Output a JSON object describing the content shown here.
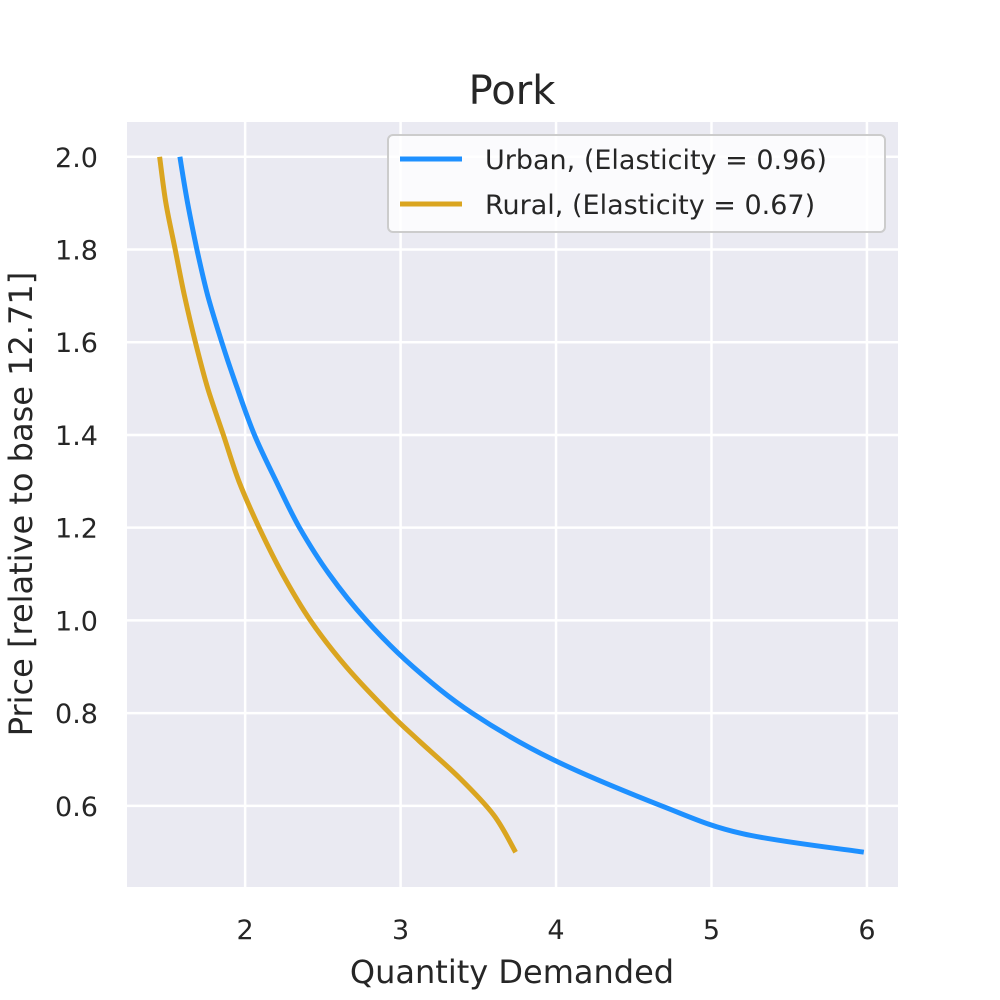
{
  "chart_data": {
    "type": "line",
    "title": "Pork",
    "xlabel": "Quantity Demanded",
    "ylabel": "Price [relative to base 12.71]",
    "xlim": [
      1.24,
      6.2
    ],
    "ylim": [
      0.425,
      2.075
    ],
    "xticks": [
      2,
      3,
      4,
      5,
      6
    ],
    "yticks": [
      0.6,
      0.8,
      1.0,
      1.2,
      1.4,
      1.6,
      1.8,
      2.0
    ],
    "xtick_labels": [
      "2",
      "3",
      "4",
      "5",
      "6"
    ],
    "ytick_labels": [
      "0.6",
      "0.8",
      "1.0",
      "1.2",
      "1.4",
      "1.6",
      "1.8",
      "2.0"
    ],
    "grid": true,
    "legend_position": "top-right",
    "background_color": "#EAEAF2",
    "series": [
      {
        "name": "Urban, (Elasticity = 0.96)",
        "color": "#1E90FF",
        "points": [
          [
            1.58,
            2.0
          ],
          [
            1.63,
            1.9
          ],
          [
            1.69,
            1.8
          ],
          [
            1.76,
            1.7
          ],
          [
            1.85,
            1.6
          ],
          [
            1.95,
            1.5
          ],
          [
            2.06,
            1.4
          ],
          [
            2.2,
            1.3
          ],
          [
            2.35,
            1.2
          ],
          [
            2.54,
            1.1
          ],
          [
            2.78,
            1.0
          ],
          [
            3.08,
            0.9
          ],
          [
            3.46,
            0.8
          ],
          [
            3.98,
            0.7
          ],
          [
            4.68,
            0.6
          ],
          [
            5.2,
            0.54
          ],
          [
            5.98,
            0.5
          ]
        ]
      },
      {
        "name": "Rural, (Elasticity = 0.67)",
        "color": "#DAA520",
        "points": [
          [
            1.45,
            2.0
          ],
          [
            1.49,
            1.9
          ],
          [
            1.55,
            1.8
          ],
          [
            1.61,
            1.7
          ],
          [
            1.68,
            1.6
          ],
          [
            1.76,
            1.5
          ],
          [
            1.86,
            1.4
          ],
          [
            1.96,
            1.3
          ],
          [
            2.09,
            1.2
          ],
          [
            2.24,
            1.1
          ],
          [
            2.42,
            1.0
          ],
          [
            2.65,
            0.9
          ],
          [
            2.93,
            0.8
          ],
          [
            3.12,
            0.74
          ],
          [
            3.38,
            0.66
          ],
          [
            3.6,
            0.58
          ],
          [
            3.74,
            0.5
          ]
        ]
      }
    ]
  }
}
